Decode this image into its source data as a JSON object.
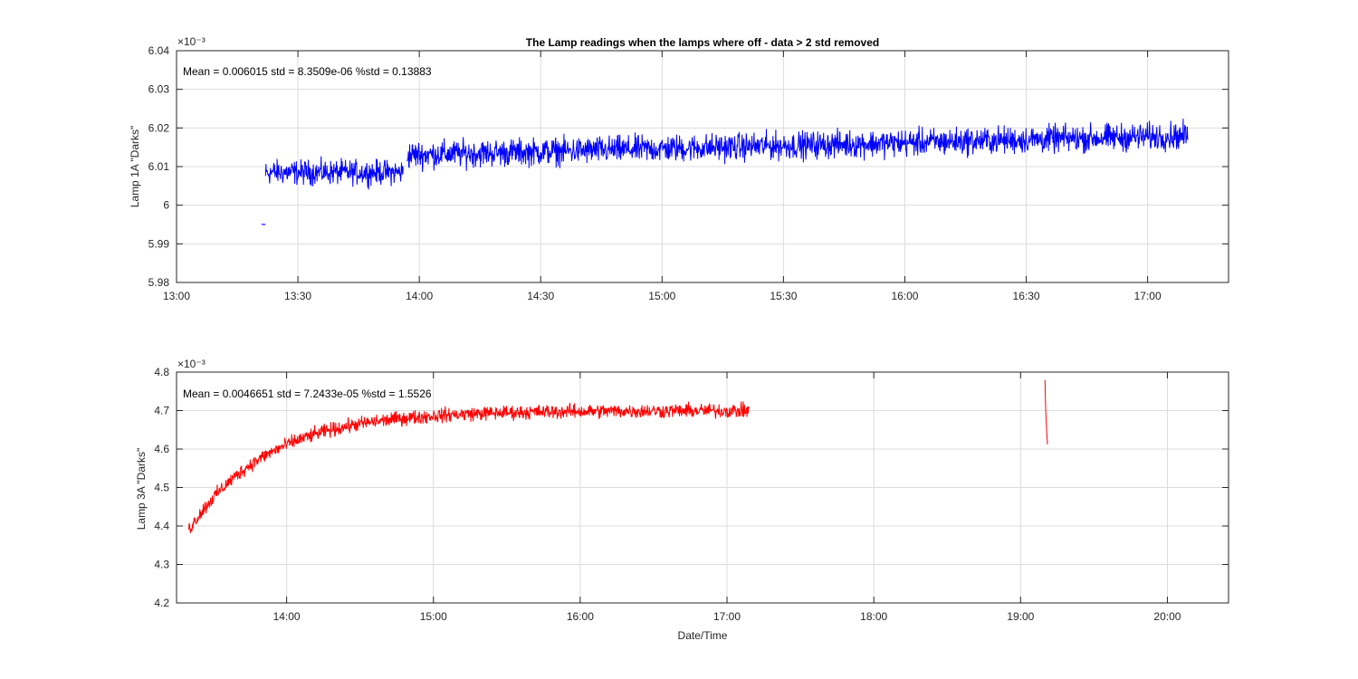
{
  "figure": {
    "title": "The Lamp readings when the lamps where off - data > 2 std removed"
  },
  "chart_data": [
    {
      "type": "line",
      "name": "top",
      "title": "The Lamp readings when the lamps where off - data > 2 std removed",
      "annotation": "Mean = 0.006015  std = 8.3509e-06  %std = 0.13883",
      "xlabel": "",
      "ylabel": "Lamp 1A \"Darks\"",
      "exponent_label": "×10⁻³",
      "x_range": [
        "13:00",
        "17:20"
      ],
      "xlim_minutes": [
        780,
        1040
      ],
      "ylim": [
        5.98,
        6.04
      ],
      "x_ticks": [
        "13:00",
        "13:30",
        "14:00",
        "14:30",
        "15:00",
        "15:30",
        "16:00",
        "16:30",
        "17:00"
      ],
      "y_ticks": [
        "5.98",
        "5.99",
        "6",
        "6.01",
        "6.02",
        "6.03",
        "6.04"
      ],
      "grid": true,
      "color": "#0000ff",
      "segments": [
        {
          "x_start": "13:21",
          "x_end": "13:22",
          "mean": 5.995,
          "noise": 0.0003,
          "trend": 0
        },
        {
          "x_start": "13:22",
          "x_end": "13:56",
          "mean": 6.0085,
          "noise": 0.0085,
          "trend": 0
        },
        {
          "x_start": "13:57",
          "x_end": "17:10",
          "mean": 6.013,
          "noise": 0.0095,
          "trend": 0.005
        }
      ]
    },
    {
      "type": "line",
      "name": "bottom",
      "annotation": "Mean = 0.0046651  std = 7.2433e-05  %std = 1.5526",
      "xlabel": "Date/Time",
      "ylabel": "Lamp 3A \"Darks\"",
      "exponent_label": "×10⁻³",
      "x_range": [
        "13:15",
        "20:25"
      ],
      "xlim_minutes": [
        795,
        1225
      ],
      "ylim": [
        4.2,
        4.8
      ],
      "x_ticks": [
        "14:00",
        "15:00",
        "16:00",
        "17:00",
        "18:00",
        "19:00",
        "20:00"
      ],
      "y_ticks": [
        "4.2",
        "4.3",
        "4.4",
        "4.5",
        "4.6",
        "4.7",
        "4.8"
      ],
      "grid": true,
      "color": "#ff0000",
      "segments": [
        {
          "x_start": "13:20",
          "x_end": "17:09",
          "curve": "saturating",
          "start_value": 4.39,
          "plateau": 4.7,
          "noise": 0.055
        },
        {
          "x_start": "19:10",
          "x_end": "19:11",
          "curve": "drop",
          "start_value": 4.78,
          "end_value": 4.61,
          "noise": 0.02
        }
      ]
    }
  ]
}
